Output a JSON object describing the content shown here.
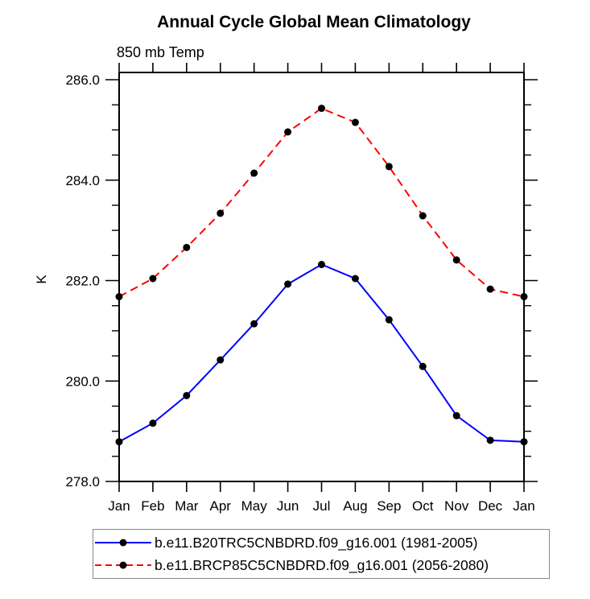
{
  "chart_data": {
    "type": "line",
    "title": "Annual Cycle Global Mean Climatology",
    "subtitle": "850 mb Temp",
    "ylabel": "K",
    "xlabel": "",
    "categories": [
      "Jan",
      "Feb",
      "Mar",
      "Apr",
      "May",
      "Jun",
      "Jul",
      "Aug",
      "Sep",
      "Oct",
      "Nov",
      "Dec",
      "Jan"
    ],
    "ylim": [
      278.0,
      286.0
    ],
    "ytick_major": [
      278.0,
      280.0,
      282.0,
      284.0,
      286.0
    ],
    "ytick_major_labels": [
      "278.0",
      "280.0",
      "282.0",
      "284.0",
      "286.0"
    ],
    "ytick_minor_step": 0.5,
    "grid": false,
    "legend_position": "bottom",
    "axis_color": "#000000",
    "series": [
      {
        "name": "b.e11.B20TRC5CNBDRD.f09_g16.001 (1981-2005)",
        "color": "#0000ff",
        "line_style": "solid",
        "marker": "filled-circle",
        "marker_color": "#000000",
        "values": [
          278.79,
          279.16,
          279.71,
          280.42,
          281.14,
          281.93,
          282.32,
          282.04,
          281.22,
          280.29,
          279.31,
          278.82,
          278.79
        ]
      },
      {
        "name": "b.e11.BRCP85C5CNBDRD.f09_g16.001 (2056-2080)",
        "color": "#ff0000",
        "line_style": "dashed",
        "marker": "filled-circle",
        "marker_color": "#000000",
        "values": [
          281.68,
          282.04,
          282.66,
          283.34,
          284.14,
          284.96,
          285.43,
          285.15,
          284.27,
          283.29,
          282.41,
          281.83,
          281.68
        ]
      }
    ]
  }
}
